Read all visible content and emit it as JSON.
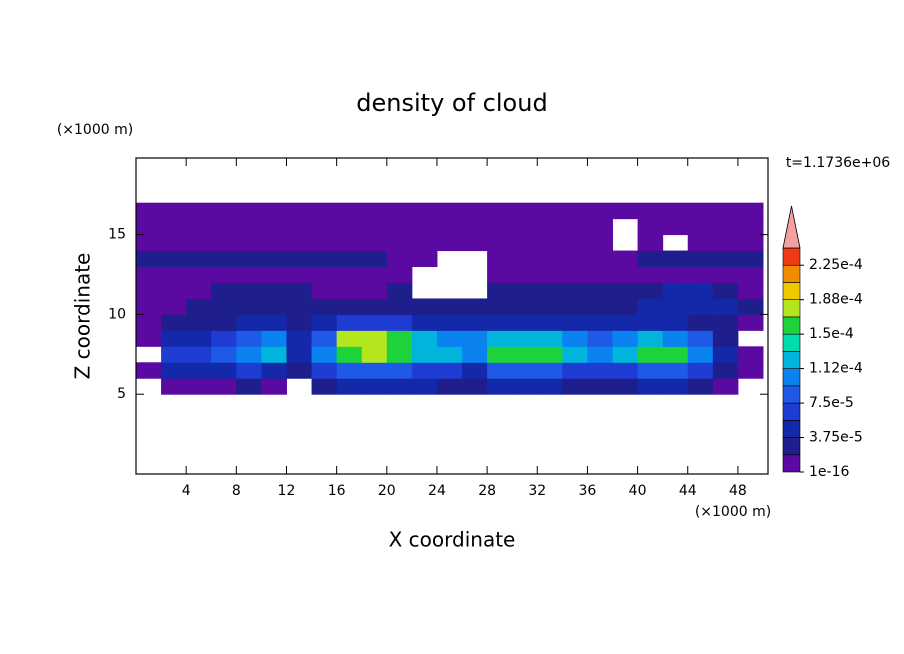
{
  "chart_data": {
    "type": "contourf",
    "title": "density of cloud",
    "xlabel": "X coordinate",
    "ylabel": "Z coordinate",
    "xunit": "(×1000 m)",
    "yunit": "(×1000 m)",
    "time_label": "t=1.1736e+06",
    "xlim": [
      0,
      50.4
    ],
    "ylim": [
      0,
      19.8
    ],
    "xticks": [
      4,
      8,
      12,
      16,
      20,
      24,
      28,
      32,
      36,
      40,
      44,
      48
    ],
    "yticks": [
      5,
      10,
      15
    ],
    "x_edges": [
      0,
      2,
      4,
      6,
      8,
      10,
      12,
      14,
      16,
      18,
      20,
      22,
      24,
      26,
      28,
      30,
      32,
      34,
      36,
      38,
      40,
      42,
      44,
      46,
      48,
      50
    ],
    "z_edges": [
      5,
      6,
      7,
      8,
      9,
      10,
      11,
      12,
      13,
      14,
      15,
      16,
      17
    ],
    "field": [
      [
        null,
        1e-05,
        1e-05,
        1e-05,
        3e-05,
        1e-05,
        null,
        3e-05,
        5e-05,
        5e-05,
        5e-05,
        5e-05,
        3e-05,
        3e-05,
        5e-05,
        5e-05,
        5e-05,
        3e-05,
        3e-05,
        3e-05,
        5e-05,
        5e-05,
        3e-05,
        1e-05,
        null
      ],
      [
        1e-05,
        5e-05,
        5e-05,
        5e-05,
        7e-05,
        5e-05,
        3e-05,
        7e-05,
        9e-05,
        9e-05,
        9e-05,
        7e-05,
        7e-05,
        5e-05,
        9e-05,
        9e-05,
        9e-05,
        7e-05,
        7e-05,
        7e-05,
        9e-05,
        9e-05,
        7e-05,
        3e-05,
        1e-05
      ],
      [
        null,
        7e-05,
        7e-05,
        9e-05,
        0.00011,
        0.00013,
        5e-05,
        0.00011,
        0.000155,
        0.000172,
        0.000155,
        0.00013,
        0.00013,
        0.00011,
        0.000155,
        0.000155,
        0.000155,
        0.00013,
        0.00011,
        0.00013,
        0.000155,
        0.000155,
        0.00011,
        5e-05,
        1e-05
      ],
      [
        1e-05,
        5e-05,
        5e-05,
        7e-05,
        9e-05,
        0.00011,
        5e-05,
        9e-05,
        0.000172,
        0.000172,
        0.000155,
        0.00013,
        0.00011,
        0.00011,
        0.00013,
        0.00013,
        0.00013,
        0.00011,
        9e-05,
        0.00011,
        0.00013,
        0.00011,
        9e-05,
        3e-05,
        null
      ],
      [
        1e-05,
        3e-05,
        3e-05,
        3e-05,
        5e-05,
        5e-05,
        3e-05,
        5e-05,
        7e-05,
        7e-05,
        7e-05,
        5e-05,
        5e-05,
        5e-05,
        5e-05,
        5e-05,
        5e-05,
        5e-05,
        5e-05,
        5e-05,
        5e-05,
        5e-05,
        3e-05,
        3e-05,
        1e-05
      ],
      [
        1e-05,
        1e-05,
        3e-05,
        3e-05,
        3e-05,
        3e-05,
        3e-05,
        3e-05,
        3e-05,
        3e-05,
        3e-05,
        3e-05,
        3e-05,
        3e-05,
        3e-05,
        3e-05,
        3e-05,
        3e-05,
        3e-05,
        3e-05,
        5e-05,
        5e-05,
        5e-05,
        5e-05,
        3e-05
      ],
      [
        1e-05,
        1e-05,
        1e-05,
        3e-05,
        3e-05,
        3e-05,
        3e-05,
        1e-05,
        1e-05,
        1e-05,
        3e-05,
        null,
        null,
        null,
        3e-05,
        3e-05,
        3e-05,
        3e-05,
        3e-05,
        3e-05,
        3e-05,
        5e-05,
        5e-05,
        3e-05,
        1e-05
      ],
      [
        1e-05,
        1e-05,
        1e-05,
        1e-05,
        1e-05,
        1e-05,
        1e-05,
        1e-05,
        1e-05,
        1e-05,
        1e-05,
        null,
        null,
        null,
        1e-05,
        1e-05,
        1e-05,
        1e-05,
        1e-05,
        1e-05,
        1e-05,
        1e-05,
        1e-05,
        1e-05,
        1e-05
      ],
      [
        3e-05,
        3e-05,
        3e-05,
        3e-05,
        3e-05,
        3e-05,
        3e-05,
        3e-05,
        3e-05,
        3e-05,
        1e-05,
        1e-05,
        null,
        null,
        1e-05,
        1e-05,
        1e-05,
        1e-05,
        1e-05,
        1e-05,
        3e-05,
        3e-05,
        3e-05,
        3e-05,
        3e-05
      ],
      [
        1e-05,
        1e-05,
        1e-05,
        1e-05,
        1e-05,
        1e-05,
        1e-05,
        1e-05,
        1e-05,
        1e-05,
        1e-05,
        1e-05,
        1e-05,
        1e-05,
        1e-05,
        1e-05,
        1e-05,
        1e-05,
        1e-05,
        null,
        1e-05,
        null,
        1e-05,
        1e-05,
        1e-05
      ],
      [
        1e-05,
        1e-05,
        1e-05,
        1e-05,
        1e-05,
        1e-05,
        1e-05,
        1e-05,
        1e-05,
        1e-05,
        1e-05,
        1e-05,
        1e-05,
        1e-05,
        1e-05,
        1e-05,
        1e-05,
        1e-05,
        1e-05,
        null,
        1e-05,
        1e-05,
        1e-05,
        1e-05,
        1e-05
      ],
      [
        1e-05,
        1e-05,
        1e-05,
        1e-05,
        1e-05,
        1e-05,
        1e-05,
        1e-05,
        1e-05,
        1e-05,
        1e-05,
        1e-05,
        1e-05,
        1e-05,
        1e-05,
        1e-05,
        1e-05,
        1e-05,
        1e-05,
        1e-05,
        1e-05,
        1e-05,
        1e-05,
        1e-05,
        1e-05
      ]
    ],
    "levels": [
      1e-16,
      1.875e-05,
      3.75e-05,
      5.625e-05,
      7.5e-05,
      9.375e-05,
      0.0001125,
      0.00013125,
      0.00015,
      0.00016875,
      0.0001875,
      0.00020625,
      0.000225,
      0.00024375
    ],
    "colors": [
      "#5a0aa0",
      "#1e1e8c",
      "#1428aa",
      "#1e3cd2",
      "#1e5ae6",
      "#0a82f0",
      "#00b4dc",
      "#00dcaa",
      "#1ed23c",
      "#b4e61e",
      "#f0c800",
      "#f08c00",
      "#f03c14"
    ],
    "extend_color": "#f4a0a0",
    "colorbar_ticks": [
      1e-16,
      {
        "value": 3.75e-05,
        "label": "3.75e-5"
      },
      {
        "value": 7.5e-05,
        "label": "7.5e-5"
      },
      {
        "value": 0.0001125,
        "label": "1.12e-4"
      },
      {
        "value": 0.00015,
        "label": "1.5e-4"
      },
      {
        "value": 0.0001875,
        "label": "1.88e-4"
      },
      {
        "value": 0.000225,
        "label": "2.25e-4"
      }
    ]
  }
}
